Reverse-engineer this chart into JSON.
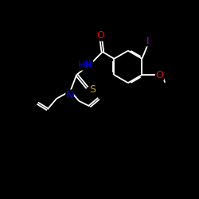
{
  "bg_color": "#000000",
  "bond_color": "#ffffff",
  "atom_colors": {
    "O": "#ff0000",
    "N": "#0000ff",
    "S": "#ccaa00",
    "I": "#aa00aa",
    "C": "#ffffff"
  },
  "figsize": [
    2.5,
    2.5
  ],
  "dpi": 100,
  "xlim": [
    0,
    10
  ],
  "ylim": [
    0,
    10
  ]
}
